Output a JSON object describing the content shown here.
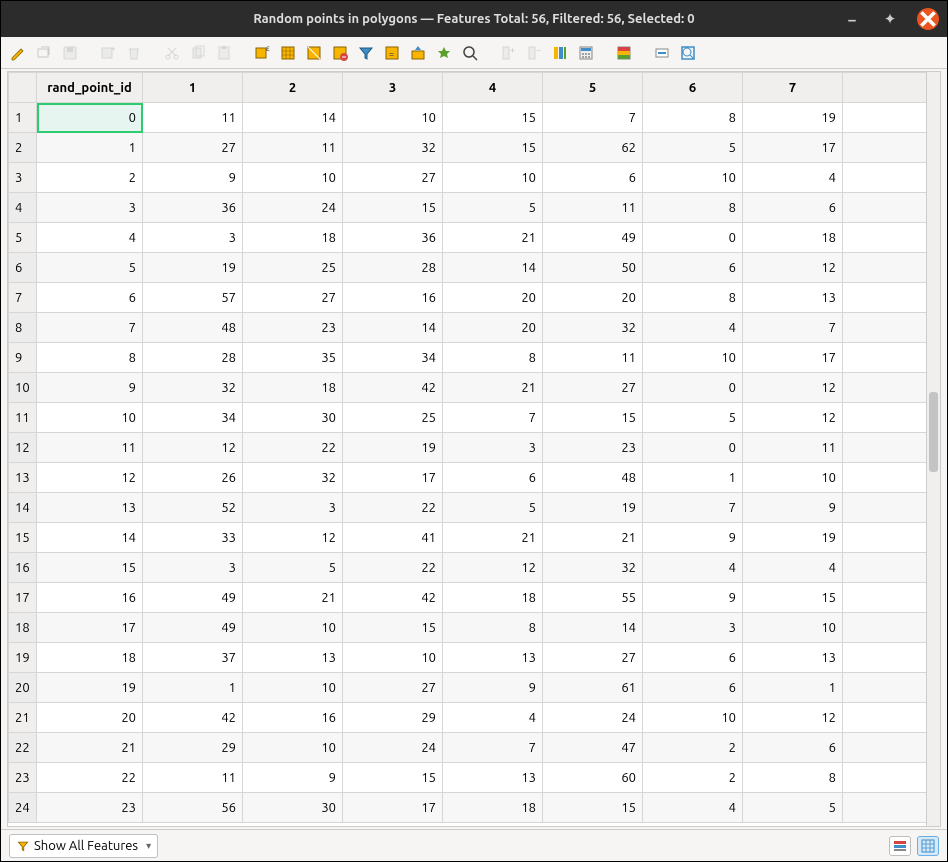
{
  "window": {
    "title": "Random points in polygons — Features Total: 56, Filtered: 56, Selected: 0"
  },
  "toolbar": {
    "accent_yellow": "#f7b500",
    "accent_blue": "#3d8ec9",
    "accent_green": "#5aa02c",
    "accent_red": "#d64541",
    "disabled_color": "#b0b0b0"
  },
  "table": {
    "columns": [
      "rand_point_id",
      "1",
      "2",
      "3",
      "4",
      "5",
      "6",
      "7"
    ],
    "rows": [
      [
        0,
        11,
        14,
        10,
        15,
        7,
        8,
        19
      ],
      [
        1,
        27,
        11,
        32,
        15,
        62,
        5,
        17
      ],
      [
        2,
        9,
        10,
        27,
        10,
        6,
        10,
        4
      ],
      [
        3,
        36,
        24,
        15,
        5,
        11,
        8,
        6
      ],
      [
        4,
        3,
        18,
        36,
        21,
        49,
        0,
        18
      ],
      [
        5,
        19,
        25,
        28,
        14,
        50,
        6,
        12
      ],
      [
        6,
        57,
        27,
        16,
        20,
        20,
        8,
        13
      ],
      [
        7,
        48,
        23,
        14,
        20,
        32,
        4,
        7
      ],
      [
        8,
        28,
        35,
        34,
        8,
        11,
        10,
        17
      ],
      [
        9,
        32,
        18,
        42,
        21,
        27,
        0,
        12
      ],
      [
        10,
        34,
        30,
        25,
        7,
        15,
        5,
        12
      ],
      [
        11,
        12,
        22,
        19,
        3,
        23,
        0,
        11
      ],
      [
        12,
        26,
        32,
        17,
        6,
        48,
        1,
        10
      ],
      [
        13,
        52,
        3,
        22,
        5,
        19,
        7,
        9
      ],
      [
        14,
        33,
        12,
        41,
        21,
        21,
        9,
        19
      ],
      [
        15,
        3,
        5,
        22,
        12,
        32,
        4,
        4
      ],
      [
        16,
        49,
        21,
        42,
        18,
        55,
        9,
        15
      ],
      [
        17,
        49,
        10,
        15,
        8,
        14,
        3,
        10
      ],
      [
        18,
        37,
        13,
        10,
        13,
        27,
        6,
        13
      ],
      [
        19,
        1,
        10,
        27,
        9,
        61,
        6,
        1
      ],
      [
        20,
        42,
        16,
        29,
        4,
        24,
        10,
        12
      ],
      [
        21,
        29,
        10,
        24,
        7,
        47,
        2,
        6
      ],
      [
        22,
        11,
        9,
        15,
        13,
        60,
        2,
        8
      ],
      [
        23,
        56,
        30,
        17,
        18,
        15,
        4,
        5
      ]
    ],
    "selected_cell": {
      "row": 0,
      "col": 0
    },
    "header_bg": "#f0efee",
    "alt_row_bg": "#f7f7f7",
    "border_color": "#d6d6d6",
    "selected_outline": "#2ecc71",
    "selected_bg": "#e6f5f0"
  },
  "statusbar": {
    "filter_label": "Show All Features",
    "view_active": "table"
  }
}
